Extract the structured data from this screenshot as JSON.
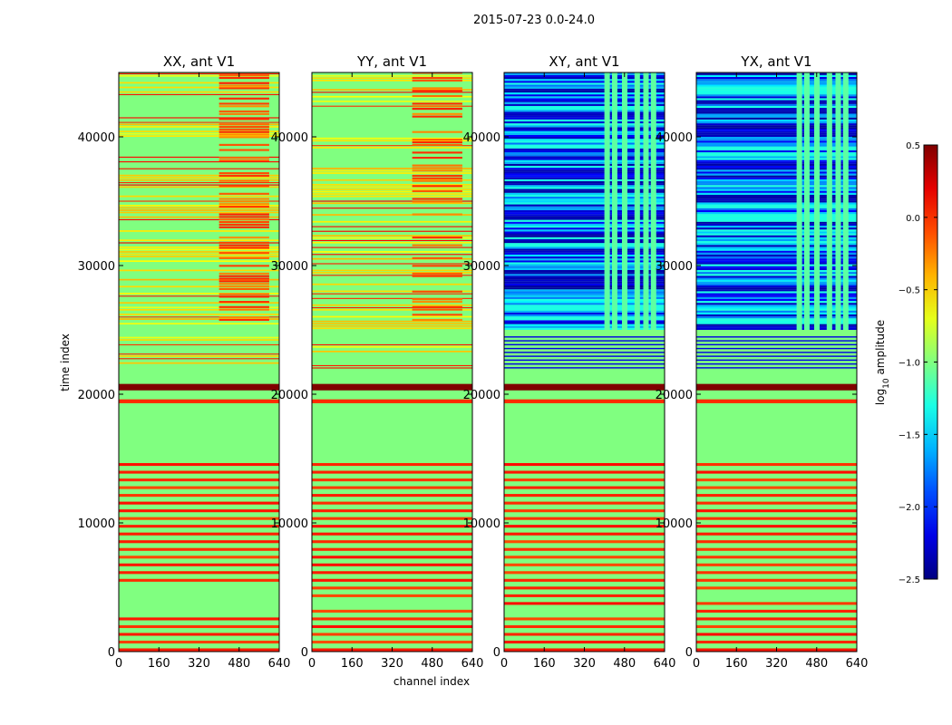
{
  "chart_data": {
    "type": "heatmap",
    "suptitle": "2015-07-23 0.0-24.0",
    "xlabel": "channel index",
    "ylabel": "time index",
    "xlim": [
      0,
      640
    ],
    "ylim": [
      0,
      45000
    ],
    "x_ticks": [
      0,
      160,
      320,
      480,
      640
    ],
    "x_tick_labels": [
      "0",
      "160",
      "320",
      "480",
      "640"
    ],
    "y_ticks": [
      0,
      10000,
      20000,
      30000,
      40000
    ],
    "y_tick_labels": [
      "0",
      "10000",
      "20000",
      "30000",
      "40000"
    ],
    "colormap": "jet",
    "panels": [
      {
        "id": "xx",
        "title": "XX, ant V1",
        "kind": "parallel",
        "bg": -1.0
      },
      {
        "id": "yy",
        "title": "YY, ant V1",
        "kind": "parallel",
        "bg": -1.0
      },
      {
        "id": "xy",
        "title": "XY, ant V1",
        "kind": "cross",
        "bg": -1.0
      },
      {
        "id": "yx",
        "title": "YX, ant V1",
        "kind": "cross",
        "bg": -1.0
      }
    ],
    "colorbar": {
      "label": "log",
      "label_sub": "10",
      "label_rest": " amplitude",
      "range": [
        -2.5,
        0.5
      ],
      "ticks": [
        0.5,
        0.0,
        -0.5,
        -1.0,
        -1.5,
        -2.0,
        -2.5
      ],
      "tick_labels": [
        "0.5",
        "0.0",
        "−0.5",
        "−1.0",
        "−1.5",
        "−2.0",
        "−2.5"
      ]
    },
    "bands": {
      "low_stripes_top": 14500,
      "low_stripe_period": 600,
      "low_stripe_value": 0.0,
      "saturated_band": [
        20300,
        20800
      ],
      "saturated_value": 0.5,
      "gap_band": [
        19300,
        19600
      ],
      "gap_value": 0.0,
      "dead_rows": [
        15000,
        17000,
        21000,
        21200
      ],
      "rfi_channel_range": [
        400,
        600
      ],
      "cross_active_range": [
        25000,
        45000
      ],
      "cross_low_value": -2.4,
      "cross_mid_value": -1.3
    }
  }
}
